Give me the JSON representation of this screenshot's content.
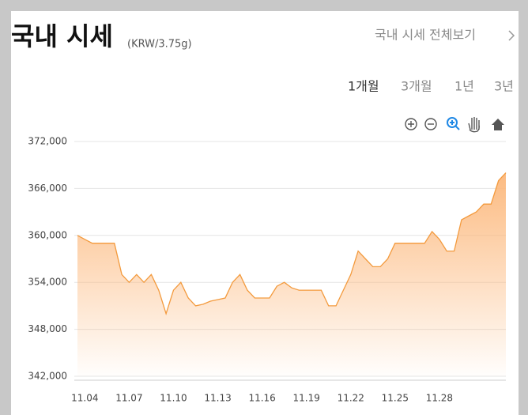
{
  "header": {
    "title": "국내 시세",
    "subtitle": "(KRW/3.75g)",
    "link": "국내 시세 전체보기"
  },
  "periods": [
    "1개월",
    "3개월",
    "1년",
    "3년"
  ],
  "chart_data": {
    "type": "area",
    "categories": [
      null,
      "11.04",
      null,
      null,
      null,
      null,
      null,
      "11.07",
      null,
      null,
      null,
      null,
      null,
      "11.10",
      null,
      null,
      null,
      null,
      null,
      "11.13",
      null,
      null,
      null,
      null,
      null,
      "11.16",
      null,
      null,
      null,
      null,
      null,
      "11.19",
      null,
      null,
      null,
      null,
      null,
      "11.22",
      null,
      null,
      null,
      null,
      null,
      "11.25",
      null,
      null,
      null,
      null,
      null,
      "11.28",
      null,
      null,
      null,
      null,
      null,
      null,
      null,
      null,
      null
    ],
    "values": [
      360000,
      359500,
      359000,
      359000,
      359000,
      359000,
      355000,
      354000,
      355000,
      354000,
      355000,
      353000,
      350000,
      353000,
      354000,
      352000,
      351000,
      351200,
      351600,
      351800,
      352000,
      354000,
      355000,
      353000,
      352000,
      352000,
      352000,
      353500,
      354000,
      353300,
      353000,
      353000,
      353000,
      353000,
      351000,
      351000,
      353000,
      355000,
      358000,
      357000,
      356000,
      356000,
      357000,
      359000,
      359000,
      359000,
      359000,
      359000,
      360500,
      359500,
      358000,
      358000,
      362000,
      362500,
      363000,
      364000,
      364000,
      367000,
      368000
    ],
    "color": "#f39a3d",
    "area_color": "#fcb77a",
    "ylim": [
      342000,
      372000
    ],
    "yticks": [
      {
        "value": 342000,
        "label": "342,000"
      },
      {
        "value": 348000,
        "label": "348,000"
      },
      {
        "value": 354000,
        "label": "354,000"
      },
      {
        "value": 360000,
        "label": "360,000"
      },
      {
        "value": 366000,
        "label": "366,000"
      },
      {
        "value": 372000,
        "label": "372,000"
      }
    ],
    "grid": true
  }
}
